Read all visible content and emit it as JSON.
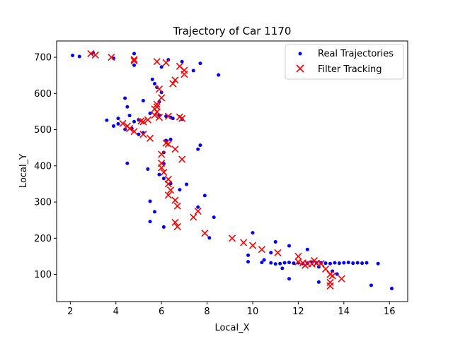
{
  "chart_data": {
    "type": "scatter",
    "title": "Trajectory of Car 1170",
    "xlabel": "Local_X",
    "ylabel": "Local_Y",
    "xlim": [
      1.4,
      16.8
    ],
    "ylim": [
      25,
      745
    ],
    "xticks": [
      2,
      4,
      6,
      8,
      10,
      12,
      14,
      16
    ],
    "yticks": [
      100,
      200,
      300,
      400,
      500,
      600,
      700
    ],
    "grid": false,
    "legend_position": "top-right",
    "series": [
      {
        "name": "Real Trajectories",
        "marker": "dot",
        "color": "#0000ff",
        "points": [
          [
            2.1,
            705
          ],
          [
            2.4,
            702
          ],
          [
            3.0,
            712
          ],
          [
            3.9,
            697
          ],
          [
            4.8,
            710
          ],
          [
            4.8,
            678
          ],
          [
            6.0,
            673
          ],
          [
            6.3,
            693
          ],
          [
            6.9,
            688
          ],
          [
            7.4,
            663
          ],
          [
            7.7,
            683
          ],
          [
            8.5,
            651
          ],
          [
            5.6,
            639
          ],
          [
            5.7,
            627
          ],
          [
            5.8,
            617
          ],
          [
            6.0,
            603
          ],
          [
            4.4,
            587
          ],
          [
            5.9,
            577
          ],
          [
            5.2,
            580
          ],
          [
            4.5,
            563
          ],
          [
            4.6,
            539
          ],
          [
            3.6,
            526
          ],
          [
            4.1,
            531
          ],
          [
            4.8,
            522
          ],
          [
            5.0,
            527
          ],
          [
            5.5,
            545
          ],
          [
            5.9,
            540
          ],
          [
            6.2,
            537
          ],
          [
            6.4,
            534
          ],
          [
            6.5,
            531
          ],
          [
            6.9,
            529
          ],
          [
            3.9,
            510
          ],
          [
            4.1,
            516
          ],
          [
            4.4,
            501
          ],
          [
            4.7,
            503
          ],
          [
            5.0,
            487
          ],
          [
            5.2,
            491
          ],
          [
            6.2,
            470
          ],
          [
            6.4,
            473
          ],
          [
            6.1,
            437
          ],
          [
            7.6,
            446
          ],
          [
            7.7,
            457
          ],
          [
            4.5,
            407
          ],
          [
            5.4,
            391
          ],
          [
            5.9,
            376
          ],
          [
            6.1,
            406
          ],
          [
            6.1,
            365
          ],
          [
            6.4,
            351
          ],
          [
            7.1,
            349
          ],
          [
            6.8,
            334
          ],
          [
            5.5,
            302
          ],
          [
            5.7,
            273
          ],
          [
            5.5,
            246
          ],
          [
            6.1,
            231
          ],
          [
            7.6,
            286
          ],
          [
            7.9,
            318
          ],
          [
            8.3,
            258
          ],
          [
            8.1,
            201
          ],
          [
            10.0,
            215
          ],
          [
            9.8,
            153
          ],
          [
            9.8,
            135
          ],
          [
            10.4,
            133
          ],
          [
            10.5,
            140
          ],
          [
            11.0,
            190
          ],
          [
            10.8,
            160
          ],
          [
            10.8,
            132
          ],
          [
            11.0,
            129
          ],
          [
            11.2,
            130
          ],
          [
            11.4,
            132
          ],
          [
            11.6,
            133
          ],
          [
            11.8,
            131
          ],
          [
            12.0,
            132
          ],
          [
            12.2,
            130
          ],
          [
            12.4,
            131
          ],
          [
            12.6,
            134
          ],
          [
            12.8,
            132
          ],
          [
            13.0,
            132
          ],
          [
            13.2,
            131
          ],
          [
            13.4,
            130
          ],
          [
            13.6,
            132
          ],
          [
            13.8,
            131
          ],
          [
            14.0,
            132
          ],
          [
            14.2,
            133
          ],
          [
            14.4,
            131
          ],
          [
            14.6,
            132
          ],
          [
            14.8,
            131
          ],
          [
            15.0,
            132
          ],
          [
            15.5,
            130
          ],
          [
            11.3,
            117
          ],
          [
            11.6,
            88
          ],
          [
            11.6,
            179
          ],
          [
            12.4,
            169
          ],
          [
            12.9,
            121
          ],
          [
            12.9,
            79
          ],
          [
            13.5,
            109
          ],
          [
            13.7,
            101
          ],
          [
            15.2,
            70
          ],
          [
            16.1,
            61
          ]
        ]
      },
      {
        "name": "Filter Tracking",
        "marker": "x",
        "color": "#ff0000",
        "points": [
          [
            2.9,
            710
          ],
          [
            3.1,
            706
          ],
          [
            3.8,
            700
          ],
          [
            4.8,
            694
          ],
          [
            4.8,
            690
          ],
          [
            5.8,
            688
          ],
          [
            6.2,
            685
          ],
          [
            6.8,
            675
          ],
          [
            7.0,
            664
          ],
          [
            7.0,
            653
          ],
          [
            6.6,
            637
          ],
          [
            6.5,
            627
          ],
          [
            5.9,
            612
          ],
          [
            6.0,
            588
          ],
          [
            5.8,
            570
          ],
          [
            5.8,
            563
          ],
          [
            5.7,
            557
          ],
          [
            5.8,
            549
          ],
          [
            5.7,
            540
          ],
          [
            5.9,
            534
          ],
          [
            6.3,
            537
          ],
          [
            6.8,
            535
          ],
          [
            6.9,
            531
          ],
          [
            4.3,
            517
          ],
          [
            4.5,
            510
          ],
          [
            4.6,
            503
          ],
          [
            4.8,
            495
          ],
          [
            5.1,
            524
          ],
          [
            5.2,
            522
          ],
          [
            5.4,
            527
          ],
          [
            5.2,
            487
          ],
          [
            5.5,
            476
          ],
          [
            6.2,
            463
          ],
          [
            6.3,
            460
          ],
          [
            6.6,
            446
          ],
          [
            6.9,
            418
          ],
          [
            6.0,
            432
          ],
          [
            6.0,
            407
          ],
          [
            6.0,
            395
          ],
          [
            6.1,
            382
          ],
          [
            6.3,
            363
          ],
          [
            6.3,
            350
          ],
          [
            6.4,
            333
          ],
          [
            6.3,
            319
          ],
          [
            6.6,
            305
          ],
          [
            6.7,
            289
          ],
          [
            7.6,
            275
          ],
          [
            7.4,
            258
          ],
          [
            6.6,
            244
          ],
          [
            6.7,
            232
          ],
          [
            7.9,
            214
          ],
          [
            9.1,
            200
          ],
          [
            9.6,
            188
          ],
          [
            10.0,
            180
          ],
          [
            10.4,
            169
          ],
          [
            11.1,
            160
          ],
          [
            12.0,
            150
          ],
          [
            12.0,
            135
          ],
          [
            12.2,
            132
          ],
          [
            12.4,
            130
          ],
          [
            12.6,
            129
          ],
          [
            12.8,
            131
          ],
          [
            13.0,
            130
          ],
          [
            12.3,
            125
          ],
          [
            12.7,
            138
          ],
          [
            13.2,
            115
          ],
          [
            13.4,
            100
          ],
          [
            13.5,
            96
          ],
          [
            13.9,
            88
          ],
          [
            13.4,
            78
          ],
          [
            13.4,
            68
          ]
        ]
      }
    ]
  }
}
